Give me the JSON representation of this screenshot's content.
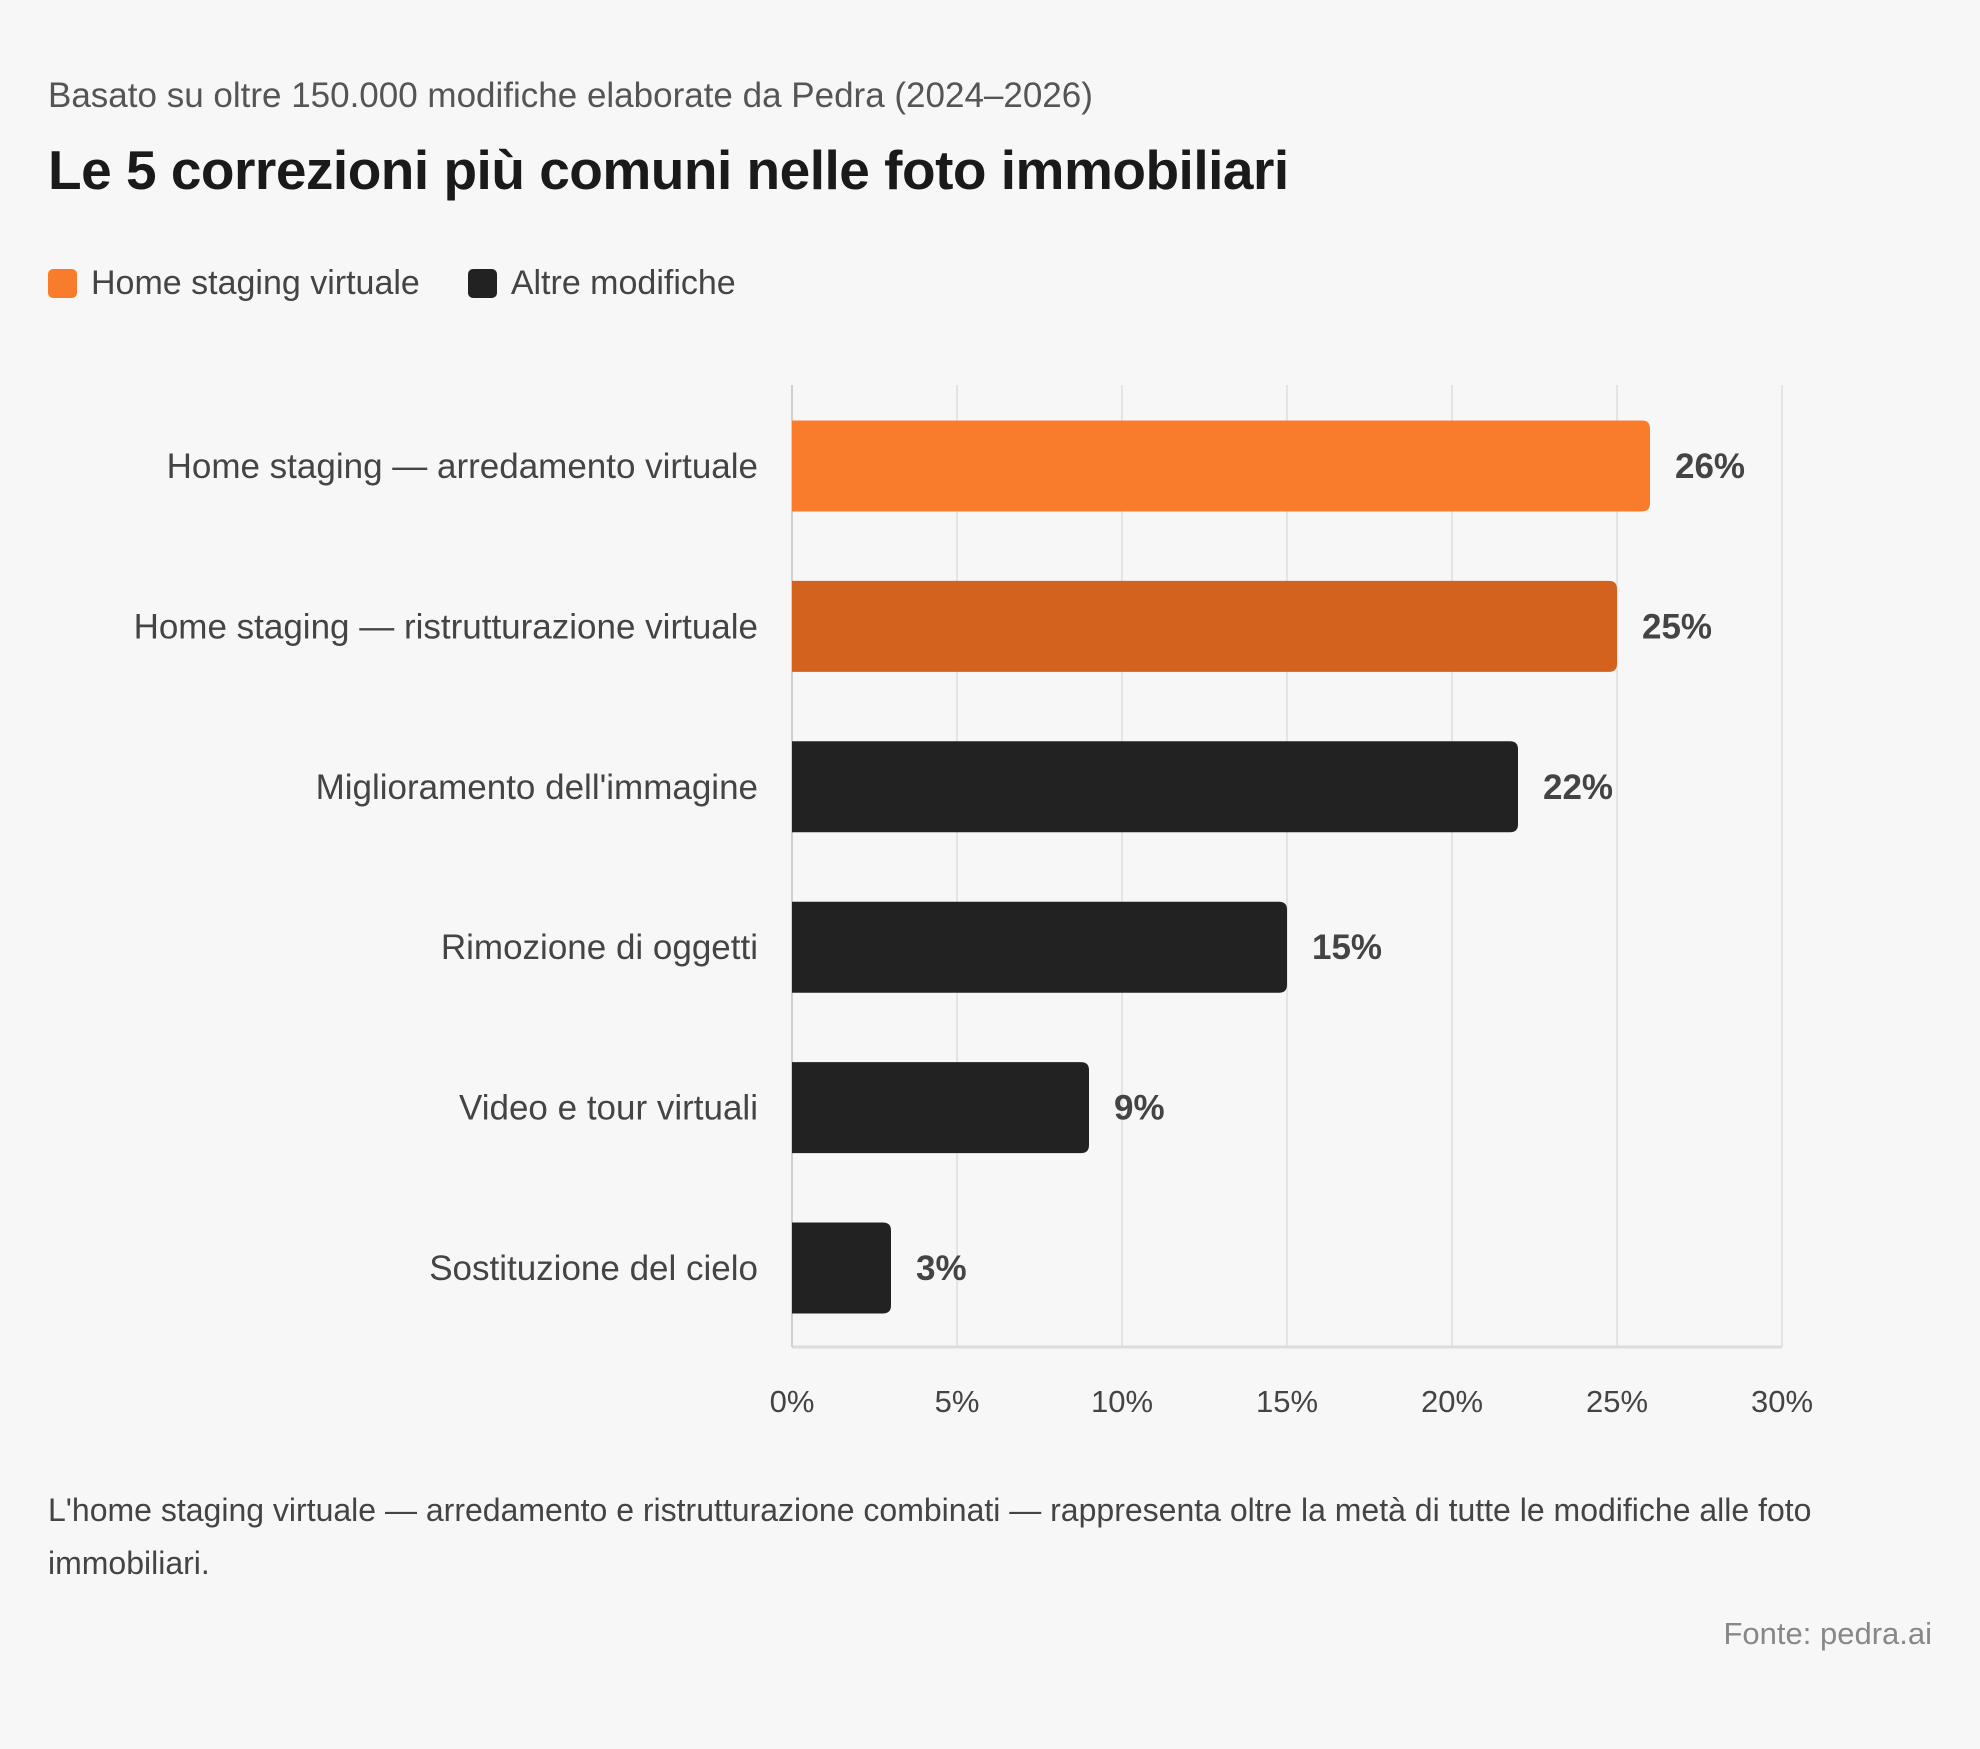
{
  "header": {
    "subtitle": "Basato su oltre 150.000 modifiche elaborate da Pedra (2024–2026)",
    "title": "Le 5 correzioni più comuni nelle foto immobiliari"
  },
  "legend": [
    {
      "label": "Home staging virtuale",
      "color": "#f97c2d"
    },
    {
      "label": "Altre modifiche",
      "color": "#222222"
    }
  ],
  "chart_data": {
    "type": "bar",
    "orientation": "horizontal",
    "categories": [
      "Home staging — arredamento virtuale",
      "Home staging — ristrutturazione virtuale",
      "Miglioramento dell'immagine",
      "Rimozione di oggetti",
      "Video e tour virtuali",
      "Sostituzione del cielo"
    ],
    "values": [
      26,
      25,
      22,
      15,
      9,
      3
    ],
    "value_labels": [
      "26%",
      "25%",
      "22%",
      "15%",
      "9%",
      "3%"
    ],
    "colors": [
      "#f97c2d",
      "#d4621f",
      "#222222",
      "#222222",
      "#222222",
      "#222222"
    ],
    "groups": [
      "Home staging virtuale",
      "Home staging virtuale",
      "Altre modifiche",
      "Altre modifiche",
      "Altre modifiche",
      "Altre modifiche"
    ],
    "xlim": [
      0,
      30
    ],
    "xticks": [
      0,
      5,
      10,
      15,
      20,
      25,
      30
    ],
    "xtick_labels": [
      "0%",
      "5%",
      "10%",
      "15%",
      "20%",
      "25%",
      "30%"
    ],
    "grid": "vertical",
    "legend_placement": "top-left"
  },
  "footnote": "L'home staging virtuale — arredamento e ristrutturazione combinati — rappresenta oltre la metà di tutte le modifiche alle foto immobiliari.",
  "source": "Fonte: pedra.ai"
}
